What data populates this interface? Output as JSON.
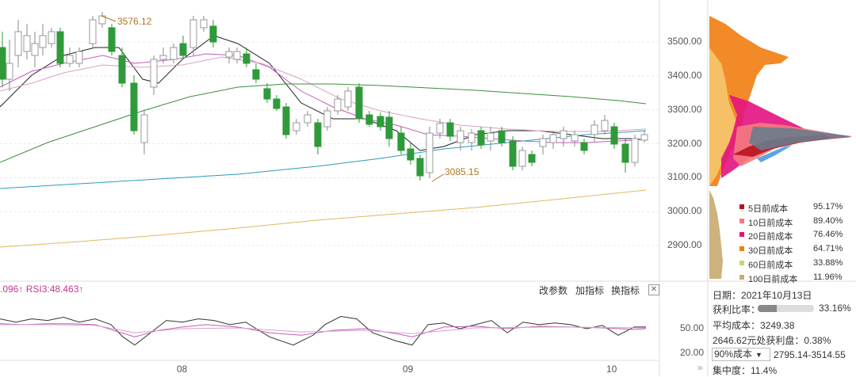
{
  "chart_data": {
    "type": "candlestick",
    "y_axis_ticks": [
      "3500.00",
      "3400.00",
      "3300.00",
      "3200.00",
      "3100.00",
      "3000.00",
      "2900.00"
    ],
    "ylim": [
      2790,
      3580
    ],
    "x_ticks": [
      "08",
      "09",
      "10"
    ],
    "annotations": {
      "high": "3576.12",
      "low": "3085.15"
    },
    "rsi_label": ".096↑ RSI3:48.463↑",
    "rsi_ticks": [
      "50.00",
      "20.00"
    ],
    "rsi_ylim": [
      10,
      100
    ]
  },
  "toolbar": {
    "change_params": "改参数",
    "add_indicator": "加指标",
    "switch_indicator": "换指标",
    "close": "✕"
  },
  "cost_legend": [
    {
      "label": "5日前成本",
      "pct": "95.17%",
      "color": "#b8141e"
    },
    {
      "label": "10日前成本",
      "pct": "89.40%",
      "color": "#f47a80"
    },
    {
      "label": "20日前成本",
      "pct": "76.46%",
      "color": "#e3127f"
    },
    {
      "label": "30日前成本",
      "pct": "64.71%",
      "color": "#f07d10"
    },
    {
      "label": "60日前成本",
      "pct": "33.88%",
      "color": "#c2dc6a"
    },
    {
      "label": "100日前成本",
      "pct": "11.96%",
      "color": "#c8aa6e"
    }
  ],
  "info": {
    "date": "日期：2021年10月13日",
    "profit_ratio_label": "获利比率：",
    "profit_ratio_value": "33.16%",
    "profit_ratio": 0.3316,
    "avg_cost": "平均成本：3249.38",
    "profit_at": "2646.62元处获利盘：0.38%",
    "cost_select": "90%成本",
    "cost_range": "2795.14-3514.55",
    "concentration": "集中度：11.4%"
  }
}
